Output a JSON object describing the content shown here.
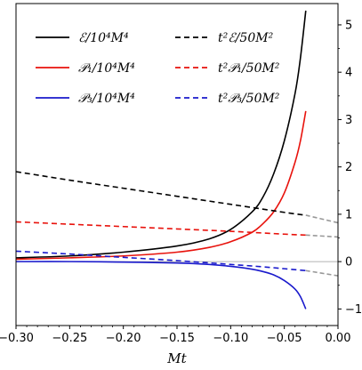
{
  "chart_data": {
    "type": "line",
    "title": "",
    "xlabel": "Mt",
    "ylabel": "",
    "xlim": [
      -0.3,
      0.0
    ],
    "ylim": [
      -1.35,
      5.45
    ],
    "grid": false,
    "legend_placement": "top-left",
    "x_ticks": [
      {
        "value": -0.3,
        "label": "−0.30"
      },
      {
        "value": -0.25,
        "label": "−0.25"
      },
      {
        "value": -0.2,
        "label": "−0.20"
      },
      {
        "value": -0.15,
        "label": "−0.15"
      },
      {
        "value": -0.1,
        "label": "−0.10"
      },
      {
        "value": -0.05,
        "label": "−0.05"
      },
      {
        "value": 0.0,
        "label": "0.00"
      }
    ],
    "y_ticks": [
      {
        "value": -1,
        "label": "−1"
      },
      {
        "value": 0,
        "label": "0"
      },
      {
        "value": 1,
        "label": "1"
      },
      {
        "value": 2,
        "label": "2"
      },
      {
        "value": 3,
        "label": "3"
      },
      {
        "value": 4,
        "label": "4"
      },
      {
        "value": 5,
        "label": "5"
      }
    ],
    "zero_line": {
      "y": 0,
      "color": "#999999"
    },
    "series": [
      {
        "name": "ℰ/10⁴M⁴",
        "color": "#000000",
        "style": "solid",
        "x": [
          -0.3,
          -0.25,
          -0.2,
          -0.15,
          -0.12,
          -0.1,
          -0.08,
          -0.07,
          -0.06,
          -0.05,
          -0.04,
          -0.035,
          -0.03
        ],
        "y": [
          0.08,
          0.12,
          0.2,
          0.33,
          0.48,
          0.68,
          1.05,
          1.36,
          1.85,
          2.55,
          3.55,
          4.3,
          5.3
        ]
      },
      {
        "name": "𝒫₁/10⁴M⁴",
        "color": "#e8120c",
        "style": "solid",
        "x": [
          -0.3,
          -0.25,
          -0.2,
          -0.15,
          -0.12,
          -0.1,
          -0.08,
          -0.07,
          -0.06,
          -0.05,
          -0.04,
          -0.035,
          -0.03
        ],
        "y": [
          0.05,
          0.08,
          0.12,
          0.2,
          0.3,
          0.42,
          0.62,
          0.8,
          1.05,
          1.45,
          2.1,
          2.55,
          3.18
        ]
      },
      {
        "name": "𝒫₃/10⁴M⁴",
        "color": "#1a1acc",
        "style": "solid",
        "x": [
          -0.3,
          -0.25,
          -0.2,
          -0.15,
          -0.12,
          -0.1,
          -0.08,
          -0.07,
          -0.06,
          -0.05,
          -0.04,
          -0.035,
          -0.03
        ],
        "y": [
          0.0,
          0.0,
          -0.01,
          -0.03,
          -0.06,
          -0.1,
          -0.16,
          -0.21,
          -0.28,
          -0.4,
          -0.58,
          -0.74,
          -1.0
        ]
      },
      {
        "name": "t²ℰ/50M²",
        "color": "#000000",
        "style": "dashed",
        "x": [
          -0.3,
          -0.25,
          -0.2,
          -0.15,
          -0.1,
          -0.05,
          -0.03
        ],
        "y": [
          1.9,
          1.72,
          1.55,
          1.38,
          1.21,
          1.04,
          0.98
        ],
        "extension": {
          "color": "#999999",
          "x": [
            -0.03,
            0.0
          ],
          "y": [
            0.98,
            0.82
          ]
        }
      },
      {
        "name": "t²𝒫₁/50M²",
        "color": "#e8120c",
        "style": "dashed",
        "x": [
          -0.3,
          -0.25,
          -0.2,
          -0.15,
          -0.1,
          -0.05,
          -0.03
        ],
        "y": [
          0.84,
          0.79,
          0.74,
          0.69,
          0.64,
          0.58,
          0.56
        ],
        "extension": {
          "color": "#999999",
          "x": [
            -0.03,
            0.0
          ],
          "y": [
            0.56,
            0.52
          ]
        }
      },
      {
        "name": "t²𝒫₃/50M²",
        "color": "#1a1acc",
        "style": "dashed",
        "x": [
          -0.3,
          -0.25,
          -0.2,
          -0.15,
          -0.1,
          -0.07,
          -0.05,
          -0.03
        ],
        "y": [
          0.22,
          0.16,
          0.09,
          0.02,
          -0.06,
          -0.11,
          -0.15,
          -0.19
        ],
        "extension": {
          "color": "#999999",
          "x": [
            -0.03,
            0.0
          ],
          "y": [
            -0.19,
            -0.3
          ]
        }
      }
    ]
  }
}
